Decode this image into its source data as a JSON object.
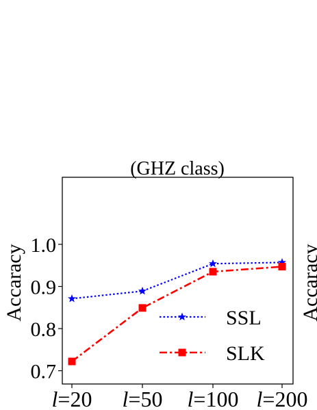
{
  "chart_data": {
    "type": "line",
    "title": "(GHZ class)",
    "xlabel": "",
    "ylabel": "Accaracy",
    "right_clipped_ylabel": "Accaracy",
    "categories": [
      {
        "prefix": "l",
        "suffix": "=20"
      },
      {
        "prefix": "l",
        "suffix": "=50"
      },
      {
        "prefix": "l",
        "suffix": "=100"
      },
      {
        "prefix": "l",
        "suffix": "=200"
      }
    ],
    "yticks": [
      "0.7",
      "0.8",
      "0.9",
      "1.0"
    ],
    "ytick_values": [
      0.7,
      0.8,
      0.9,
      1.0
    ],
    "ylim": [
      0.7,
      1.05
    ],
    "grid": false,
    "legend_position": "lower-right",
    "series": [
      {
        "name": "SSL",
        "values": [
          0.871,
          0.889,
          0.954,
          0.957
        ],
        "color": "#0000ff",
        "line_style": "dotted",
        "marker": "star"
      },
      {
        "name": "SLK",
        "values": [
          0.722,
          0.849,
          0.935,
          0.947
        ],
        "color": "#ff0000",
        "line_style": "dash-dot",
        "marker": "square"
      }
    ]
  }
}
